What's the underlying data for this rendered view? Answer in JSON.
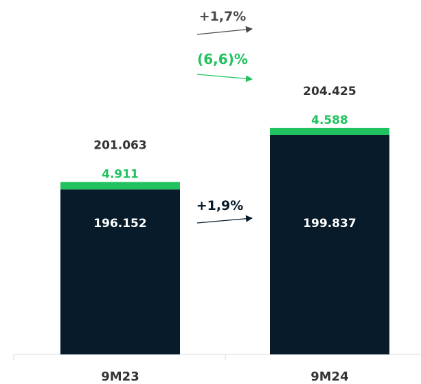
{
  "chart_data": {
    "type": "bar",
    "stacked": true,
    "categories": [
      "9M23",
      "9M24"
    ],
    "series": [
      {
        "values": [
          196.152,
          199.837
        ],
        "value_labels": [
          "196.152",
          "199.837"
        ],
        "color": "#071b2b"
      },
      {
        "values": [
          4.911,
          4.588
        ],
        "value_labels": [
          "4.911",
          "4.588"
        ],
        "color": "#1fc25e"
      }
    ],
    "totals": {
      "values": [
        201.063,
        204.425
      ],
      "labels": [
        "201.063",
        "204.425"
      ]
    },
    "growth": [
      {
        "label": "+1,7%",
        "applies_to": "total",
        "color": "#4a4a4a"
      },
      {
        "label": "(6,6)%",
        "applies_to": "green segment",
        "color": "#1fc25e"
      },
      {
        "label": "+1,9%",
        "applies_to": "dark segment",
        "color": "#071b2b"
      }
    ],
    "ylim": [
      0,
      215
    ],
    "grid": false,
    "legend": "none"
  }
}
